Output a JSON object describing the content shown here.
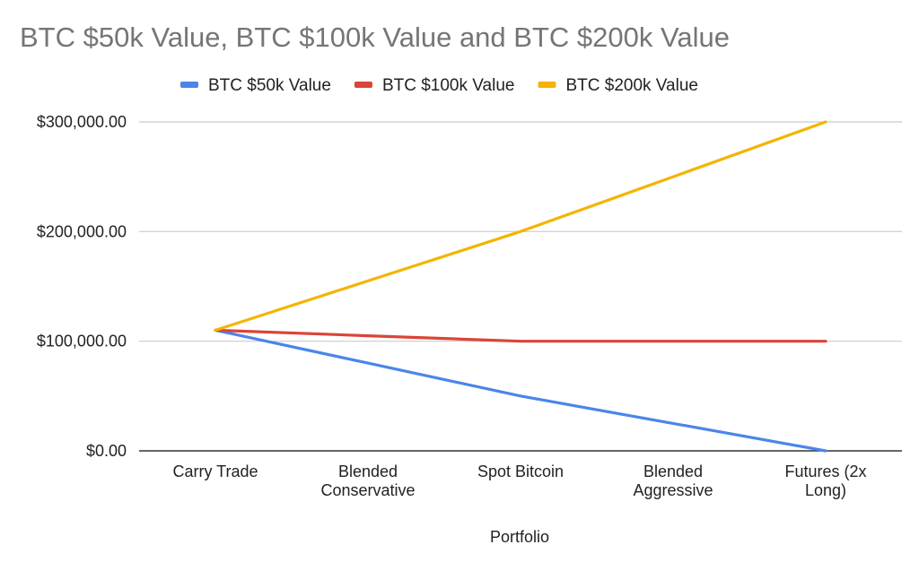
{
  "chart_data": {
    "type": "line",
    "title": "BTC $50k Value, BTC $100k Value and BTC $200k Value",
    "xlabel": "Portfolio",
    "ylabel": "",
    "categories": [
      [
        "Carry Trade"
      ],
      [
        "Blended",
        "Conservative"
      ],
      [
        "Spot Bitcoin"
      ],
      [
        "Blended",
        "Aggressive"
      ],
      [
        "Futures (2x",
        "Long)"
      ]
    ],
    "ylim": [
      0,
      300000
    ],
    "yticks": [
      0,
      100000,
      200000,
      300000
    ],
    "ytick_labels": [
      "$0.00",
      "$100,000.00",
      "$200,000.00",
      "$300,000.00"
    ],
    "grid": true,
    "legend_position": "top",
    "series": [
      {
        "name": "BTC $50k Value",
        "color": "#4a86e8",
        "values": [
          110000,
          80000,
          50000,
          25000,
          0
        ]
      },
      {
        "name": "BTC $100k Value",
        "color": "#db4437",
        "values": [
          110000,
          105000,
          100000,
          100000,
          100000
        ]
      },
      {
        "name": "BTC $200k Value",
        "color": "#f4b400",
        "values": [
          110000,
          155000,
          200000,
          250000,
          300000
        ]
      }
    ]
  }
}
